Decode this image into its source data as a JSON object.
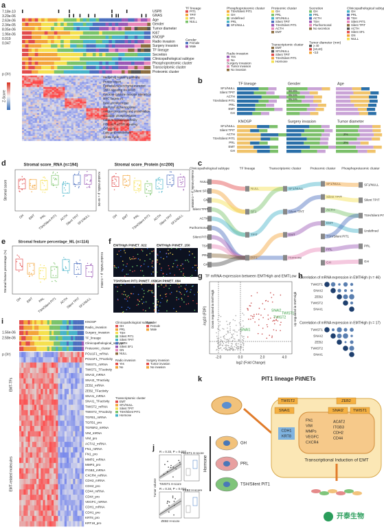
{
  "panels": {
    "a": "a",
    "b": "b",
    "c": "c",
    "d": "d",
    "e": "e",
    "f": "f",
    "g": "g",
    "h": "h",
    "i": "i",
    "j": "j",
    "k": "k"
  },
  "a": {
    "pvalues": [
      "7.18e-10",
      "3.29e-06",
      "2.63e-06",
      "2.34e-05",
      "8.05e-06",
      "1.96e-06",
      "0.019",
      "0.047"
    ],
    "rows": [
      "USP8",
      "GNAS",
      "Age",
      "Gender",
      "Tumor diameter",
      "Ki67",
      "KNOSP",
      "Radio invasion",
      "Surgery invasion",
      "TF lineage",
      "Secretion",
      "Clinicopathological subtype",
      "Phosphoproteomic cluster",
      "Transcriptomic cluster",
      "Proteomic cluster"
    ],
    "pchi": "p (X²)",
    "zscore": "Z-Score",
    "pathways": [
      "Hedgehog signaling pathway",
      "Protein export",
      "Epithelial-mesenchymal transition",
      "TNFA signaling via NFKB",
      "Cytokine-cytokine receptor interaction",
      "MYC targets V1",
      "Base excision repair",
      "Interferon alpha response",
      "Antigen processing and presentation",
      "Oxidative phosphorylation",
      "Calcium signaling pathway",
      "PI3K-AKT-mTOR signaling",
      "Cell cycle",
      "Fatty acid metabolism",
      "Citrate cycle"
    ],
    "legends": [
      {
        "title": "TF lineage",
        "items": [
          "PIT1",
          "TPIT",
          "SF1",
          "NULL"
        ]
      },
      {
        "title": "Phosphoproteomic cluster",
        "items": [
          "TSH/Silent PIT1",
          "GH",
          "Undefined",
          "PRL",
          "SF1/NULL"
        ]
      },
      {
        "title": "Proteomic cluster",
        "items": [
          "GH",
          "PRL",
          "SF1/NULL",
          "Silent TPIT",
          "TSH/Silent PIT1",
          "ACTH",
          "EMT"
        ]
      },
      {
        "title": "Secretion",
        "items": [
          "GH",
          "PRL",
          "ACTH",
          "TSH",
          "Plurihormonal",
          "No secretion"
        ]
      },
      {
        "title": "Clinicopathological subtype",
        "items": [
          "GH",
          "PRL",
          "TSH",
          "Silent PIT1",
          "Silent TPIT",
          "ACTH",
          "Silent SF1",
          "GN",
          "NULL"
        ]
      },
      {
        "title": "Gender",
        "items": [
          "Female",
          "Male"
        ]
      },
      {
        "title": "Radio invasion",
        "items": [
          "Yes",
          "No"
        ]
      },
      {
        "title": "Surgery invasion",
        "items": [
          "Tumor invasion",
          "No invasion"
        ]
      },
      {
        "title": "Transcriptomic cluster",
        "items": [
          "EMT",
          "SF1/NULL",
          "Silent TPIT",
          "TSH/Silent PIT1",
          "Hormone"
        ]
      },
      {
        "title": "Tumor diameter (mm)",
        "items": [
          "≥ 40",
          "[10,40)",
          "<10"
        ]
      }
    ]
  },
  "b": {
    "titles": [
      "TF lineage",
      "Gender",
      "Age",
      "KNOSP",
      "Surgery invasion",
      "Tumor diameter"
    ],
    "rows": [
      "SF1/NULL",
      "Silent TPIT",
      "ACTH",
      "TSH/Silent PIT1",
      "PRL",
      "EMT",
      "GH"
    ],
    "pcts": [
      "90.9%",
      "95.5%",
      "95.5%",
      "2%",
      "2%"
    ]
  },
  "c": {
    "columns": [
      "Clinicopathological subtype",
      "TF lineage",
      "Transcriptomic cluster",
      "Proteomic cluster",
      "Phosphoproteomic cluster"
    ],
    "left": [
      "NULL",
      "Silent SF1",
      "GN",
      "Silent TPIT",
      "ACTH",
      "Purihormonal",
      "Silent PIT1",
      "TSH",
      "PRL",
      "GH"
    ],
    "tf": [
      "NULL",
      "SF1",
      "TPIT",
      "PIT1"
    ],
    "trans": [
      "SF1/NULL",
      "Silent TPIT",
      "EMT",
      "Hormone"
    ],
    "prot": [
      "SF1/NULL",
      "Silent TPIT",
      "ACTH",
      "EMT",
      "TSH/Silent PIT1",
      "PRL",
      "GH"
    ],
    "phos": [
      "SF1/NULL",
      "Silent TPIT",
      "TSH/Silent PIT1",
      "Undefined",
      "PRL",
      "GH"
    ]
  },
  "d": {
    "title1": "Stromal score_RNA (n=194)",
    "title2": "Stromal score_Protein (n=200)",
    "ylabel": "Stromal score",
    "kw1": "Kruskal-Wallis, p = 6e-06",
    "kw2": "Kruskal-Wallis, p = 0.00058",
    "groups": [
      "GH",
      "EMT",
      "PRL",
      "TSH/Silent PIT1",
      "ACTH",
      "Silent TPIT",
      "SF1/NULL"
    ]
  },
  "e": {
    "title": "Stromal feature percentage_ML (n=114)",
    "ylabel": "Stromal feature percentage (%)",
    "kw": "Kruskal-Wallis, p = 0.0054"
  },
  "f": {
    "labels": [
      "EMTHigh PitNET_022",
      "EMTHigh PitNET_150",
      "TSH/Silent PIT1 PitNET_058",
      "GH PitNET_084"
    ]
  },
  "g": {
    "title": "TF mRNA expression between EMTHigh and EMTLow",
    "xlabel": "log2 (Fold Change)",
    "ylabel": "-log10 (FDR)",
    "up": "Up regulated in EMTHigh",
    "down": "Down regulated in EMTHigh",
    "genes": [
      "SNAI2",
      "TWIST1",
      "TWIST2",
      "SNAI1"
    ],
    "xticks": [
      "-2.0",
      "0.0",
      "2.0",
      "4.0"
    ]
  },
  "h": {
    "title1": "Correlation of mRNA expression in EMTHigh (n = 46)",
    "title2": "Correlation of mRNA expression in EMTHigh (n = 17)",
    "genes": [
      "TWIST1",
      "SNAI2",
      "ZEB2",
      "TWIST2",
      "SNAI1"
    ]
  },
  "i": {
    "rows": [
      "KNOSP",
      "Radio_invasion",
      "Surgery_invasion",
      "TF_lineage",
      "Clinicopathological_subtype",
      "Proteomic_cluster",
      "POU1F1_mRNA",
      "POU1F1_TFactivity",
      "TWIST1_mRNA",
      "TWIST1_TFactivity",
      "SNAI2_mRNA",
      "SNAI2_TFactivity",
      "ZEB2_mRNA",
      "ZEB2_TFactivity",
      "SNAI1_mRNA",
      "SNAI1_TFactivity",
      "TWIST2_mRNA",
      "TWIST2_TFactivity",
      "TGFB1_mRNA",
      "TGFB1_pro",
      "TGFBR2_mRNA",
      "VIM_mRNA",
      "VIM_pro",
      "ACTA2_mRNA",
      "FN1_mRNA",
      "FN1_pro",
      "MMP2_mRNA",
      "MMP2_pro",
      "ITGB3_mRNA",
      "CXCR4_mRNA",
      "CDH2_mRNA",
      "CDH2_pro",
      "CD44_mRNA",
      "CD44_pro",
      "VEGFC_mRNA",
      "CDH1_mRNA",
      "CDH1_pro",
      "KRT8_pro",
      "KRT18_pro"
    ],
    "side1": "EMT-TFs",
    "side2": "EMT-related molecules",
    "pvals": [
      "1.56e-06",
      "2.58e-06"
    ],
    "pchi": "p (X²)"
  },
  "j": {
    "stat1": "R = 0.33, P = 0.037",
    "stat2": "R = 0.34, P = 0.034",
    "x1": "TWIST1 H-score",
    "x2": "ZEB2 H-score",
    "y": "Tumor volume",
    "t1": "TWIST1 H-score",
    "t2": "ZEB2 H-score"
  },
  "k": {
    "title": "PIT1 lineage PitNETs",
    "hormone": "Hormone",
    "types": [
      "GH",
      "PRL",
      "TSH/Silent PIT1"
    ],
    "tfs": [
      "TWIST2",
      "SNAI1",
      "ZEB2",
      "SNAI2",
      "TWIST1"
    ],
    "genes1": [
      "CDH1",
      "KRT8"
    ],
    "genes2": [
      "FN1",
      "VIM",
      "MMPs",
      "VEGFC",
      "CXCR4"
    ],
    "genes3": [
      "ACAT2",
      "ITGB3",
      "CDH2",
      "CD44"
    ],
    "caption": "Transcriptional Induction of EMT",
    "logo": "开泰生物"
  }
}
